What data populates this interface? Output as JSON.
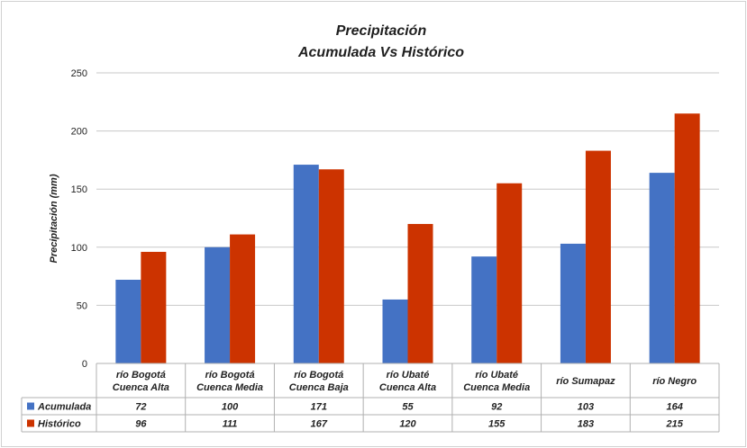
{
  "chart_data": {
    "type": "bar",
    "title": "Precipitación",
    "subtitle": "Acumulada Vs Histórico",
    "ylabel": "Precipitación (mm)",
    "xlabel": "",
    "ylim": [
      0,
      250
    ],
    "yticks": [
      0,
      50,
      100,
      150,
      200,
      250
    ],
    "grid": true,
    "categories": [
      [
        "río Bogotá",
        "Cuenca Alta"
      ],
      [
        "río Bogotá",
        "Cuenca Media"
      ],
      [
        "río Bogotá",
        "Cuenca Baja"
      ],
      [
        "río Ubaté",
        "Cuenca Alta"
      ],
      [
        "río Ubaté",
        "Cuenca Media"
      ],
      [
        "río Sumapaz"
      ],
      [
        "río Negro"
      ]
    ],
    "series": [
      {
        "name": "Acumulada",
        "color": "#4472c4",
        "values": [
          72,
          100,
          171,
          55,
          92,
          103,
          164
        ]
      },
      {
        "name": "Histórico",
        "color": "#cc3300",
        "values": [
          96,
          111,
          167,
          120,
          155,
          183,
          215
        ]
      }
    ],
    "legend": "data-table"
  }
}
